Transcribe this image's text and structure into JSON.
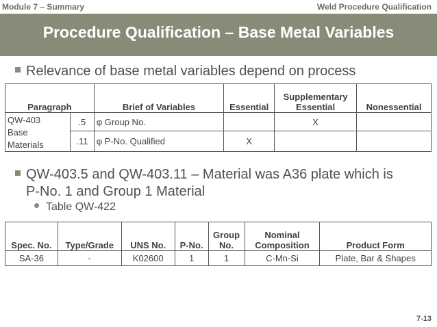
{
  "header": {
    "module": "Module 7 – Summary",
    "section": "Weld Procedure Qualification"
  },
  "slide": {
    "title": "Procedure Qualification – Base Metal Variables",
    "page": "7-13"
  },
  "bullets": {
    "b1": "Relevance of base metal variables depend on process",
    "b2_line1": "QW-403.5 and QW-403.11 – Material was A36 plate which is",
    "b2_line2": "P-No. 1 and Group 1 Material",
    "sub1": "Table QW-422"
  },
  "table1": {
    "headers": {
      "paragraph": "Paragraph",
      "brief": "Brief of Variables",
      "essential": "Essential",
      "supp1": "Supplementary",
      "supp2": "Essential",
      "nonessential": "Nonessential"
    },
    "group_label": [
      "QW-403",
      "Base",
      "Materials"
    ],
    "rows": [
      {
        "sub": ".5",
        "brief": "φ Group No.",
        "essential": "",
        "supplementary": "X",
        "nonessential": ""
      },
      {
        "sub": ".11",
        "brief": "φ P-No. Qualified",
        "essential": "X",
        "supplementary": "",
        "nonessential": ""
      }
    ]
  },
  "table2": {
    "headers": {
      "spec": "Spec. No.",
      "type": "Type/Grade",
      "uns": "UNS No.",
      "pno": "P-No.",
      "group1": "Group",
      "group2": "No.",
      "nominal1": "Nominal",
      "nominal2": "Composition",
      "form": "Product Form"
    },
    "row": {
      "spec": "SA-36",
      "type": "-",
      "uns": "K02600",
      "pno": "1",
      "group": "1",
      "composition": "C-Mn-Si",
      "form": "Plate, Bar & Shapes"
    }
  }
}
